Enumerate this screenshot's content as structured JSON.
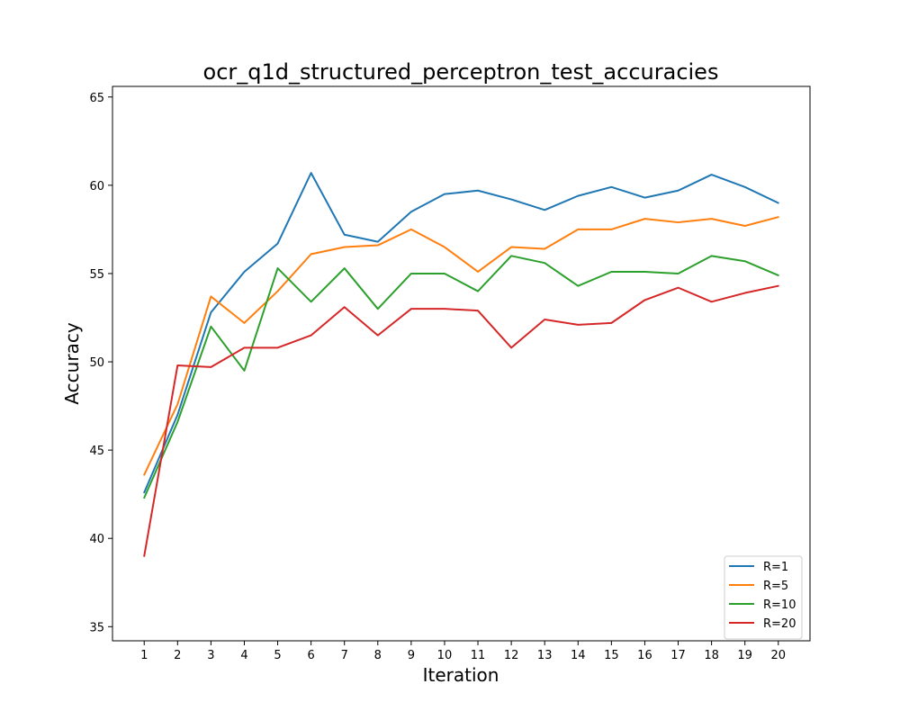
{
  "chart_data": {
    "type": "line",
    "title": "ocr_q1d_structured_perceptron_test_accuracies",
    "xlabel": "Iteration",
    "ylabel": "Accuracy",
    "x": [
      1,
      2,
      3,
      4,
      5,
      6,
      7,
      8,
      9,
      10,
      11,
      12,
      13,
      14,
      15,
      16,
      17,
      18,
      19,
      20
    ],
    "xlim": [
      0.05,
      20.95
    ],
    "ylim": [
      34.2,
      65.6
    ],
    "yticks": [
      35,
      40,
      45,
      50,
      55,
      60,
      65
    ],
    "grid": false,
    "legend_position": "lower-right",
    "series": [
      {
        "name": "R=1",
        "color": "#1f77b4",
        "values": [
          42.6,
          47.0,
          52.8,
          55.1,
          56.7,
          60.7,
          57.2,
          56.8,
          58.5,
          59.5,
          59.7,
          59.2,
          58.6,
          59.4,
          59.9,
          59.3,
          59.7,
          60.6,
          59.9,
          59.0
        ]
      },
      {
        "name": "R=5",
        "color": "#ff7f0e",
        "values": [
          43.6,
          47.6,
          53.7,
          52.2,
          54.0,
          56.1,
          56.5,
          56.6,
          57.5,
          56.5,
          55.1,
          56.5,
          56.4,
          57.5,
          57.5,
          58.1,
          57.9,
          58.1,
          57.7,
          58.2
        ]
      },
      {
        "name": "R=10",
        "color": "#2ca02c",
        "values": [
          42.3,
          46.6,
          52.0,
          49.5,
          55.3,
          53.4,
          55.3,
          53.0,
          55.0,
          55.0,
          54.0,
          56.0,
          55.6,
          54.3,
          55.1,
          55.1,
          55.0,
          56.0,
          55.7,
          54.9
        ]
      },
      {
        "name": "R=20",
        "color": "#d62728",
        "values": [
          39.0,
          49.8,
          49.7,
          50.8,
          50.8,
          51.5,
          53.1,
          51.5,
          53.0,
          53.0,
          52.9,
          50.8,
          52.4,
          52.1,
          52.2,
          53.5,
          54.2,
          53.4,
          53.9,
          54.3
        ]
      }
    ]
  }
}
